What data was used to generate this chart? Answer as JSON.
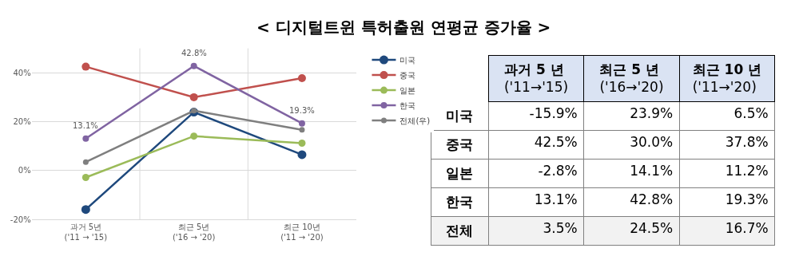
{
  "chart_data": [
    {
      "type": "line",
      "title": "< 디지털트윈 특허출원 연평균 증가율 >",
      "categories": [
        "과거 5년\n('11 → '15)",
        "최근 5년\n('16 → '20)",
        "최근 10년\n('11 → '20)"
      ],
      "series": [
        {
          "name": "미국",
          "color": "#1f497d",
          "values": [
            -15.9,
            23.9,
            6.5
          ]
        },
        {
          "name": "중국",
          "color": "#c0504d",
          "values": [
            42.5,
            30.0,
            37.8
          ]
        },
        {
          "name": "일본",
          "color": "#9bbb59",
          "values": [
            -2.8,
            14.1,
            11.2
          ]
        },
        {
          "name": "한국",
          "color": "#8064a2",
          "values": [
            13.1,
            42.8,
            19.3
          ],
          "value_labels": [
            "13.1%",
            "42.8%",
            "19.3%"
          ]
        },
        {
          "name": "전체(우)",
          "color": "#7f7f7f",
          "values": [
            3.5,
            24.5,
            16.7
          ]
        }
      ],
      "ylim": [
        -20,
        50
      ],
      "yticks": [
        {
          "value": -20,
          "label": "-20%"
        },
        {
          "value": 0,
          "label": "0%"
        },
        {
          "value": 20,
          "label": "20%"
        },
        {
          "value": 40,
          "label": "40%"
        }
      ],
      "grid": true,
      "legend": "right",
      "marker": "circle",
      "line_style": "solid"
    },
    {
      "type": "other",
      "categories": [
        "과거 5 년\n('11→'15)",
        "최근 5 년\n('16→'20)",
        "최근 10 년\n('11→'20)"
      ],
      "y_categories": [
        "미국",
        "중국",
        "일본",
        "한국",
        "전체"
      ],
      "cell_labels": [
        [
          "-15.9%",
          "23.9%",
          "6.5%"
        ],
        [
          "42.5%",
          "30.0%",
          "37.8%"
        ],
        [
          "-2.8%",
          "14.1%",
          "11.2%"
        ],
        [
          "13.1%",
          "42.8%",
          "19.3%"
        ],
        [
          "3.5%",
          "24.5%",
          "16.7%"
        ]
      ]
    }
  ]
}
